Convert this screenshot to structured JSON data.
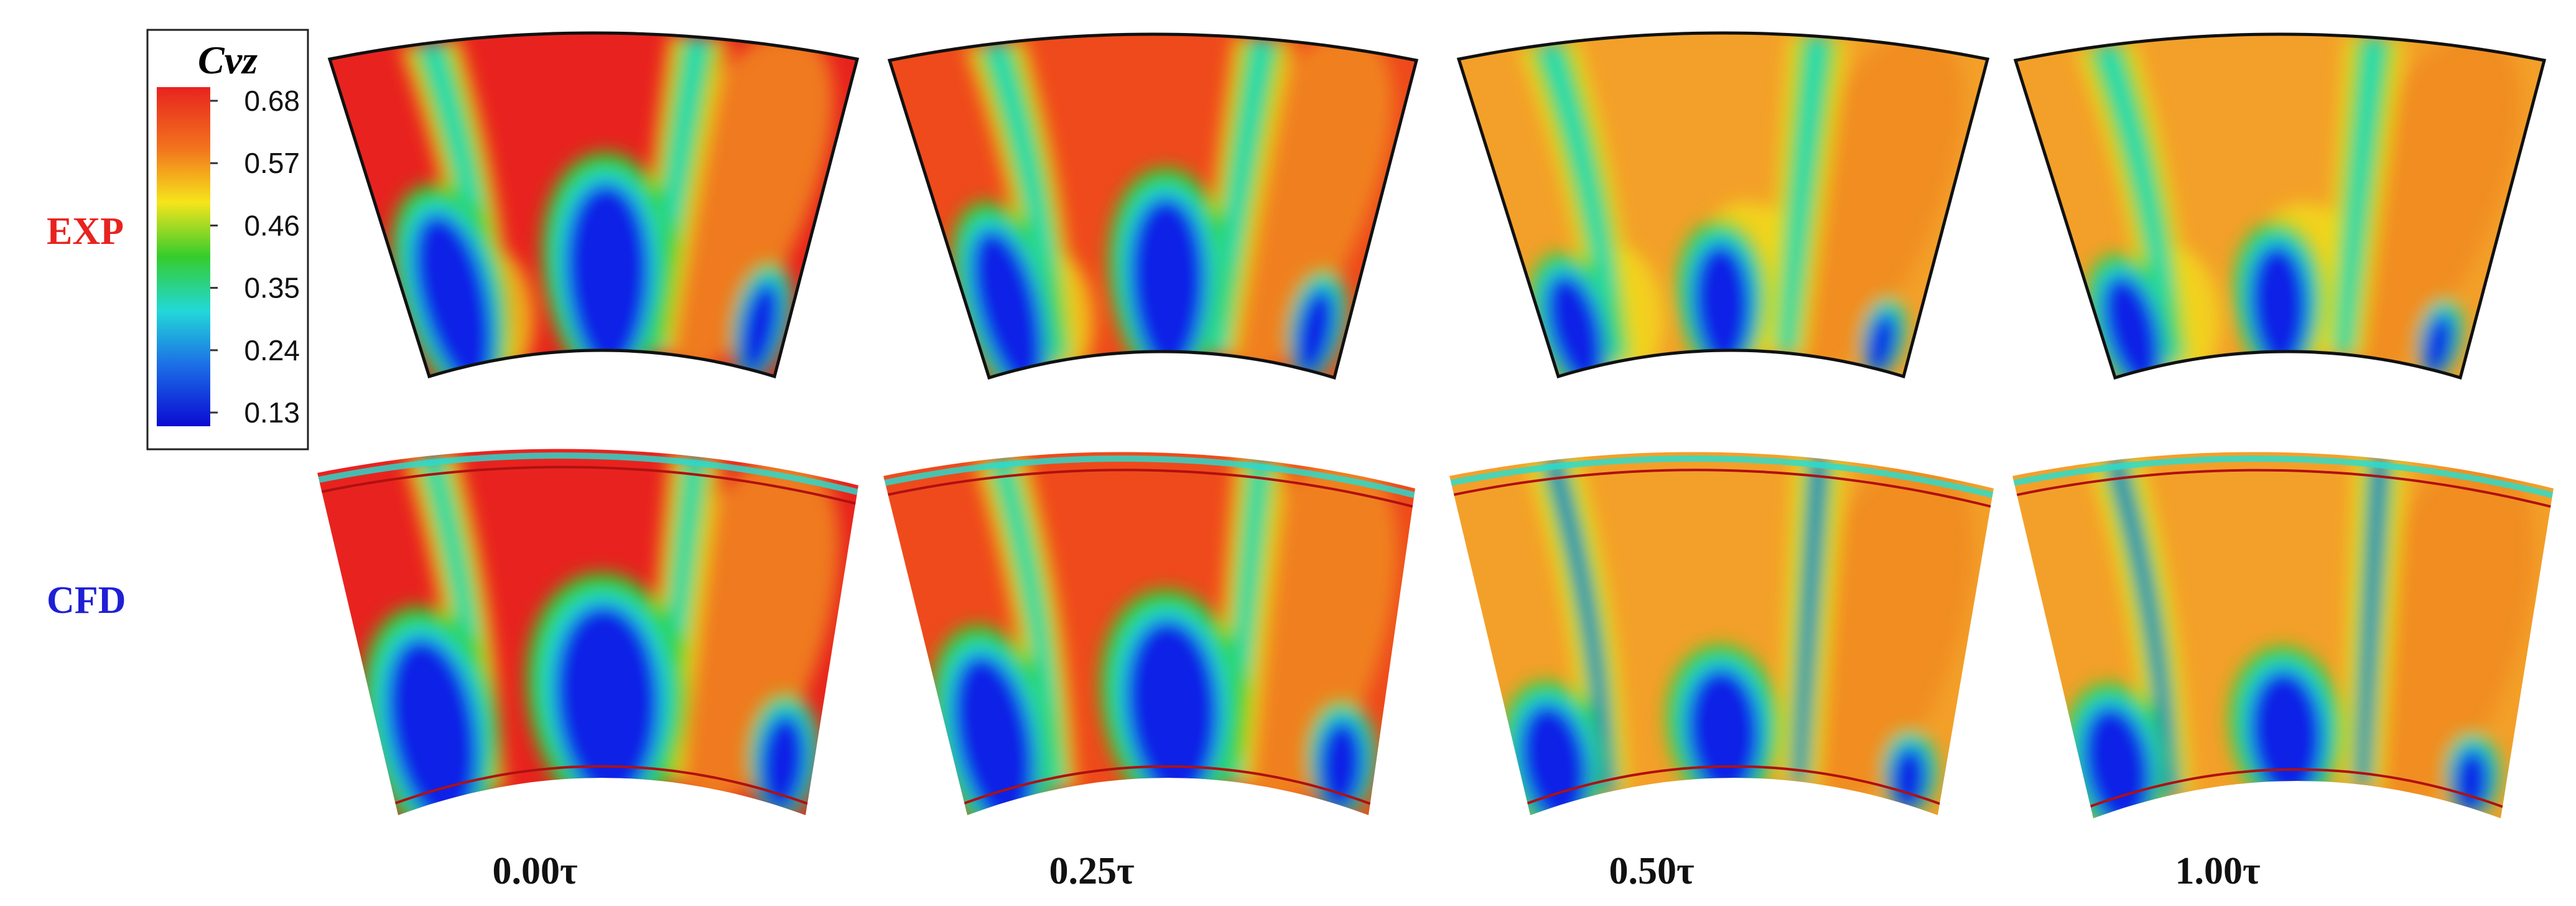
{
  "legend": {
    "title": "Cvz",
    "ticks": [
      "0.68",
      "0.57",
      "0.46",
      "0.35",
      "0.24",
      "0.13"
    ],
    "colors": [
      "#e8231f",
      "#f5a11c",
      "#f6e51c",
      "#35cc2c",
      "#22d8d8",
      "#1c4ee6",
      "#0a0ad2"
    ]
  },
  "rows": [
    {
      "label": "EXP",
      "color": "#e8231f"
    },
    {
      "label": "CFD",
      "color": "#1f1fd6"
    }
  ],
  "columns": [
    {
      "label": "0.00τ"
    },
    {
      "label": "0.25τ"
    },
    {
      "label": "0.50τ"
    },
    {
      "label": "1.00τ"
    }
  ],
  "field_colors": {
    "red": "#e8231f",
    "orange_red": "#ef4a1c",
    "orange": "#f08a22",
    "light_orange": "#f3a02a",
    "yellow": "#f2e21e",
    "green": "#2fd12c",
    "cyan": "#22e0d4",
    "blue": "#0b22e6",
    "dark_red_line": "#b01010"
  }
}
